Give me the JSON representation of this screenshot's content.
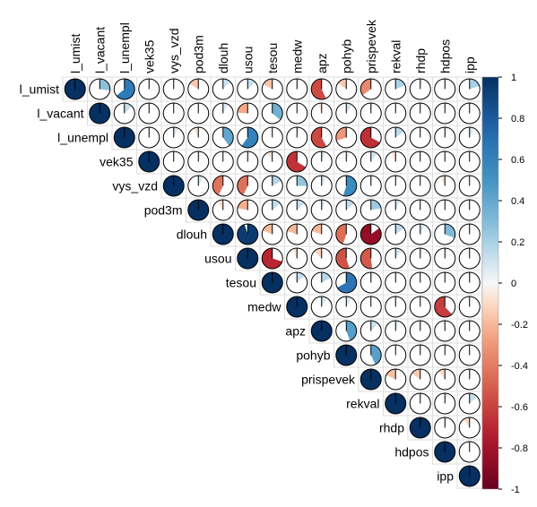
{
  "chart_data": {
    "type": "heatmap",
    "variant": "correlation-pie-upper",
    "title": "",
    "variables": [
      "l_umist",
      "l_vacant",
      "l_unempl",
      "vek35",
      "vys_vzd",
      "pod3m",
      "dlouh",
      "usou",
      "tesou",
      "medw",
      "apz",
      "pohyb",
      "prispevek",
      "rekval",
      "rhdp",
      "hdpos",
      "ipp"
    ],
    "matrix": [
      [
        1,
        0.27,
        0.64,
        0.03,
        0.0,
        -0.16,
        0.12,
        0.13,
        -0.17,
        0.03,
        -0.57,
        -0.15,
        -0.35,
        0.19,
        0.05,
        0.05,
        0.2
      ],
      [
        0.27,
        1,
        0.13,
        0.03,
        0.0,
        -0.03,
        0.08,
        -0.24,
        0.36,
        0.0,
        -0.06,
        0.1,
        0.04,
        0.02,
        0.02,
        0.03,
        0.02
      ],
      [
        0.64,
        0.13,
        1,
        0.02,
        0.07,
        -0.08,
        0.4,
        0.6,
        -0.02,
        0.05,
        -0.58,
        -0.3,
        -0.67,
        0.15,
        0.02,
        0.05,
        0.07
      ],
      [
        0.03,
        0.03,
        0.02,
        1,
        0.01,
        0.05,
        0.02,
        0.05,
        -0.08,
        -0.66,
        0.06,
        0.06,
        0.1,
        -0.07,
        -0.04,
        -0.01,
        -0.02
      ],
      [
        0.0,
        0.0,
        0.07,
        0.01,
        1,
        0.08,
        -0.43,
        -0.43,
        0.17,
        0.25,
        0.08,
        0.55,
        0.05,
        0.03,
        0.03,
        -0.08,
        -0.01
      ],
      [
        -0.16,
        -0.03,
        -0.08,
        0.05,
        0.08,
        1,
        -0.09,
        -0.22,
        0.14,
        0.13,
        0.07,
        0.14,
        0.22,
        0.08,
        0.01,
        0.03,
        -0.02
      ],
      [
        0.12,
        0.08,
        0.4,
        0.02,
        -0.43,
        -0.09,
        1,
        0.95,
        -0.19,
        -0.2,
        -0.2,
        -0.45,
        -0.85,
        0.15,
        0.08,
        0.31,
        0.03
      ],
      [
        0.13,
        -0.24,
        0.6,
        0.05,
        -0.43,
        -0.22,
        0.95,
        1,
        -0.7,
        -0.07,
        -0.13,
        -0.55,
        -0.52,
        0.1,
        0.05,
        0.05,
        0.01
      ],
      [
        -0.17,
        0.36,
        -0.02,
        -0.08,
        0.17,
        0.14,
        -0.19,
        -0.7,
        1,
        0.13,
        0.17,
        0.67,
        0.05,
        0.03,
        0.01,
        0.03,
        0.03
      ],
      [
        0.03,
        0.0,
        0.05,
        -0.66,
        0.25,
        0.13,
        -0.2,
        -0.07,
        0.13,
        1,
        0.09,
        0.09,
        0.02,
        -0.03,
        0.02,
        -0.62,
        0.02
      ],
      [
        -0.57,
        -0.06,
        -0.58,
        0.06,
        0.08,
        0.07,
        -0.2,
        -0.13,
        0.17,
        0.09,
        1,
        0.44,
        0.12,
        0.06,
        0.03,
        -0.03,
        0.02
      ],
      [
        -0.15,
        0.1,
        -0.3,
        0.06,
        0.55,
        0.14,
        -0.45,
        -0.55,
        0.67,
        0.09,
        0.44,
        1,
        0.43,
        0.02,
        0.03,
        0.01,
        0.01
      ],
      [
        -0.35,
        0.04,
        -0.67,
        0.1,
        0.05,
        0.22,
        -0.85,
        -0.52,
        0.05,
        0.02,
        0.12,
        0.43,
        1,
        -0.18,
        -0.15,
        -0.1,
        0.04
      ],
      [
        0.19,
        0.02,
        0.15,
        -0.07,
        0.03,
        0.08,
        0.15,
        0.1,
        0.03,
        -0.03,
        0.06,
        0.02,
        -0.18,
        1,
        0.03,
        0.05,
        0.13
      ],
      [
        0.05,
        0.02,
        0.02,
        -0.04,
        0.03,
        0.01,
        0.08,
        0.05,
        0.01,
        0.02,
        0.03,
        0.03,
        -0.15,
        0.03,
        1,
        0.04,
        -0.1
      ],
      [
        0.05,
        0.03,
        0.05,
        -0.01,
        -0.08,
        0.03,
        0.31,
        0.05,
        0.03,
        -0.62,
        -0.03,
        0.01,
        -0.1,
        0.05,
        0.04,
        1,
        0.01
      ],
      [
        0.2,
        0.02,
        0.07,
        -0.02,
        -0.01,
        -0.02,
        0.03,
        0.01,
        0.03,
        0.02,
        0.02,
        0.01,
        0.04,
        0.13,
        -0.1,
        0.01,
        1
      ]
    ],
    "colorbar": {
      "range": [
        -1,
        1
      ],
      "ticks": [
        "1",
        "0.8",
        "0.6",
        "0.4",
        "0.2",
        "0",
        "-0.2",
        "-0.4",
        "-0.6",
        "-0.8",
        "-1"
      ]
    },
    "colors": {
      "negative": "#67001F",
      "neutral": "#F7F7F7",
      "positive": "#053061"
    }
  }
}
